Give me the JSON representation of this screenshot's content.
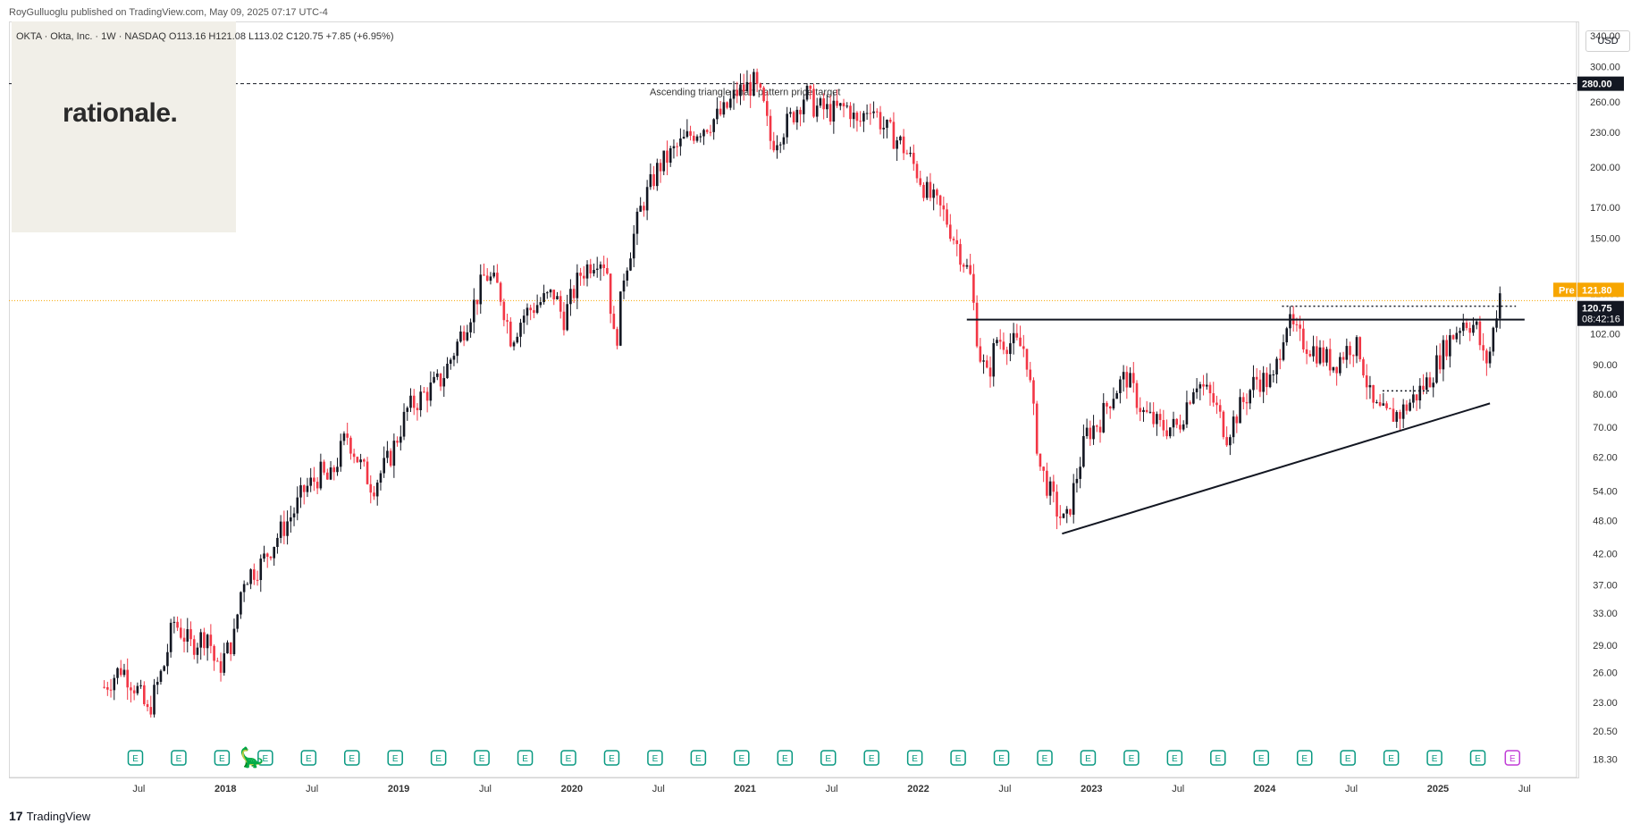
{
  "header": {
    "publisher": "RoyGulluoglu published on TradingView.com, May 09, 2025 07:17 UTC-4",
    "ticker_line": "OKTA · Okta, Inc. · 1W · NASDAQ  O113.16  H121.08  L113.02  C120.75  +7.85 (+6.95%)"
  },
  "logo": {
    "text": "rationale."
  },
  "footer": {
    "brand": "TradingView"
  },
  "price_axis": {
    "currency": "USD",
    "target_label": "280.00",
    "pre_label": "Pre",
    "pre_price": "121.80",
    "last_price": "120.75",
    "countdown": "08:42:16"
  },
  "colors": {
    "up": "#131722",
    "down": "#f23645",
    "target_line": "#131722",
    "pre_line": "#f7a600",
    "pre_tag": "#f7a600",
    "last_tag": "#131722",
    "earnings": "#089981",
    "pattern_line": "#131722"
  },
  "chart_data": {
    "type": "candlestick",
    "title": "OKTA · Okta, Inc. · 1W · NASDAQ",
    "scale": "log",
    "ylim": [
      17,
      360
    ],
    "y_ticks": [
      18.3,
      20.5,
      23.0,
      26.0,
      29.0,
      33.0,
      37.0,
      42.0,
      48.0,
      54.0,
      62.0,
      70.0,
      80.0,
      90.0,
      102.0,
      120.0,
      150.0,
      170.0,
      200.0,
      230.0,
      260.0,
      300.0,
      340.0
    ],
    "x_ticks": [
      "Jul",
      "2018",
      "Jul",
      "2019",
      "Jul",
      "2020",
      "Jul",
      "2021",
      "Jul",
      "2022",
      "Jul",
      "2023",
      "Jul",
      "2024",
      "Jul",
      "2025",
      "Jul"
    ],
    "x_tick_years": [
      2017.5,
      2018.0,
      2018.5,
      2019.0,
      2019.5,
      2020.0,
      2020.5,
      2021.0,
      2021.5,
      2022.0,
      2022.5,
      2023.0,
      2023.5,
      2024.0,
      2024.5,
      2025.0,
      2025.5
    ],
    "x_range_years": [
      2016.75,
      2025.8
    ],
    "last_bar": {
      "open": 113.16,
      "high": 121.08,
      "low": 113.02,
      "close": 120.75,
      "change": "+7.85 (+6.95%)"
    },
    "price_path": [
      [
        2017.3,
        24.5
      ],
      [
        2017.4,
        26.5
      ],
      [
        2017.5,
        24.0
      ],
      [
        2017.55,
        22.0
      ],
      [
        2017.65,
        27.0
      ],
      [
        2017.7,
        32.0
      ],
      [
        2017.8,
        29.0
      ],
      [
        2017.9,
        30.5
      ],
      [
        2017.95,
        26.0
      ],
      [
        2018.05,
        30.0
      ],
      [
        2018.1,
        38.0
      ],
      [
        2018.2,
        40.0
      ],
      [
        2018.3,
        45.0
      ],
      [
        2018.4,
        50.0
      ],
      [
        2018.45,
        54.0
      ],
      [
        2018.55,
        58.0
      ],
      [
        2018.6,
        56.0
      ],
      [
        2018.7,
        68.0
      ],
      [
        2018.78,
        60.0
      ],
      [
        2018.85,
        55.0
      ],
      [
        2018.95,
        62.0
      ],
      [
        2019.05,
        75.0
      ],
      [
        2019.15,
        80.0
      ],
      [
        2019.25,
        85.0
      ],
      [
        2019.35,
        100.0
      ],
      [
        2019.45,
        118.0
      ],
      [
        2019.5,
        130.0
      ],
      [
        2019.58,
        122.0
      ],
      [
        2019.65,
        100.0
      ],
      [
        2019.72,
        110.0
      ],
      [
        2019.8,
        115.0
      ],
      [
        2019.9,
        120.0
      ],
      [
        2019.95,
        108.0
      ],
      [
        2020.05,
        130.0
      ],
      [
        2020.15,
        140.0
      ],
      [
        2020.2,
        135.0
      ],
      [
        2020.25,
        95.0
      ],
      [
        2020.3,
        130.0
      ],
      [
        2020.4,
        170.0
      ],
      [
        2020.5,
        200.0
      ],
      [
        2020.6,
        215.0
      ],
      [
        2020.7,
        230.0
      ],
      [
        2020.8,
        240.0
      ],
      [
        2020.88,
        250.0
      ],
      [
        2020.95,
        270.0
      ],
      [
        2021.05,
        280.0
      ],
      [
        2021.1,
        260.0
      ],
      [
        2021.15,
        220.0
      ],
      [
        2021.25,
        240.0
      ],
      [
        2021.35,
        270.0
      ],
      [
        2021.4,
        255.0
      ],
      [
        2021.5,
        250.0
      ],
      [
        2021.6,
        255.0
      ],
      [
        2021.65,
        235.0
      ],
      [
        2021.72,
        260.0
      ],
      [
        2021.8,
        235.0
      ],
      [
        2021.9,
        220.0
      ],
      [
        2021.98,
        200.0
      ],
      [
        2022.05,
        180.0
      ],
      [
        2022.15,
        165.0
      ],
      [
        2022.25,
        140.0
      ],
      [
        2022.3,
        128.0
      ],
      [
        2022.35,
        95.0
      ],
      [
        2022.4,
        85.0
      ],
      [
        2022.45,
        100.0
      ],
      [
        2022.55,
        98.0
      ],
      [
        2022.62,
        96.0
      ],
      [
        2022.7,
        60.0
      ],
      [
        2022.8,
        50.0
      ],
      [
        2022.85,
        47.0
      ],
      [
        2022.9,
        55.0
      ],
      [
        2022.97,
        68.0
      ],
      [
        2023.05,
        72.0
      ],
      [
        2023.12,
        80.0
      ],
      [
        2023.2,
        86.0
      ],
      [
        2023.3,
        74.0
      ],
      [
        2023.4,
        70.0
      ],
      [
        2023.5,
        70.0
      ],
      [
        2023.6,
        85.0
      ],
      [
        2023.7,
        78.0
      ],
      [
        2023.78,
        68.0
      ],
      [
        2023.85,
        75.0
      ],
      [
        2023.95,
        85.0
      ],
      [
        2024.05,
        84.0
      ],
      [
        2024.12,
        108.0
      ],
      [
        2024.2,
        100.0
      ],
      [
        2024.3,
        95.0
      ],
      [
        2024.4,
        90.0
      ],
      [
        2024.5,
        98.0
      ],
      [
        2024.55,
        95.0
      ],
      [
        2024.62,
        76.0
      ],
      [
        2024.7,
        73.0
      ],
      [
        2024.78,
        74.0
      ],
      [
        2024.85,
        78.0
      ],
      [
        2024.95,
        85.0
      ],
      [
        2025.05,
        98.0
      ],
      [
        2025.15,
        108.0
      ],
      [
        2025.22,
        105.0
      ],
      [
        2025.27,
        90.0
      ],
      [
        2025.3,
        95.0
      ],
      [
        2025.34,
        113.16
      ],
      [
        2025.36,
        120.75
      ]
    ],
    "annotations": [
      {
        "text": "Ascending triangle chart pattern price target",
        "price": 280.0
      }
    ],
    "pattern_lines": [
      {
        "name": "resistance",
        "from": [
          2022.28,
          108.0
        ],
        "to": [
          2025.5,
          108.0
        ]
      },
      {
        "name": "ascending-support",
        "from": [
          2022.83,
          45.5
        ],
        "to": [
          2025.3,
          77.0
        ]
      },
      {
        "name": "breakout-level",
        "from": [
          2024.1,
          114.0
        ],
        "to": [
          2025.45,
          114.0
        ]
      },
      {
        "name": "base-level",
        "from": [
          2024.68,
          81.0
        ],
        "to": [
          2024.95,
          81.0
        ]
      }
    ],
    "earnings_markers": [
      2017.48,
      2017.73,
      2017.98,
      2018.23,
      2018.48,
      2018.73,
      2018.98,
      2019.23,
      2019.48,
      2019.73,
      2019.98,
      2020.23,
      2020.48,
      2020.73,
      2020.98,
      2021.23,
      2021.48,
      2021.73,
      2021.98,
      2022.23,
      2022.48,
      2022.73,
      2022.98,
      2023.23,
      2023.48,
      2023.73,
      2023.98,
      2024.23,
      2024.48,
      2024.73,
      2024.98,
      2025.23,
      2025.43
    ],
    "earnings_label": "E"
  }
}
